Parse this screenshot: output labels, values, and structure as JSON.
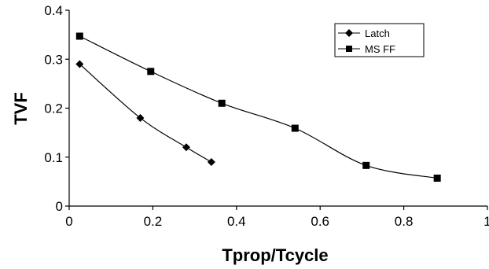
{
  "chart_data": {
    "type": "line",
    "xlabel": "Tprop/Tcycle",
    "ylabel": "TVF",
    "xlim": [
      0,
      1
    ],
    "ylim": [
      0,
      0.4
    ],
    "xticks": [
      0,
      0.2,
      0.4,
      0.6,
      0.8,
      1
    ],
    "xtick_labels": [
      "0",
      "0.2",
      "0.4",
      "0.6",
      "0.8",
      "1"
    ],
    "yticks": [
      0,
      0.1,
      0.2,
      0.3,
      0.4
    ],
    "ytick_labels": [
      "0",
      "0.1",
      "0.2",
      "0.3",
      "0.4"
    ],
    "grid": false,
    "legend_position": "top-right",
    "series": [
      {
        "name": "Latch",
        "marker": "diamond",
        "smooth": true,
        "color": "#000000",
        "x": [
          0.025,
          0.17,
          0.28,
          0.34
        ],
        "y": [
          0.29,
          0.18,
          0.12,
          0.09
        ]
      },
      {
        "name": "MS FF",
        "marker": "square",
        "smooth": true,
        "color": "#000000",
        "x": [
          0.025,
          0.195,
          0.365,
          0.54,
          0.71,
          0.88
        ],
        "y": [
          0.347,
          0.275,
          0.21,
          0.159,
          0.083,
          0.057
        ]
      }
    ]
  }
}
